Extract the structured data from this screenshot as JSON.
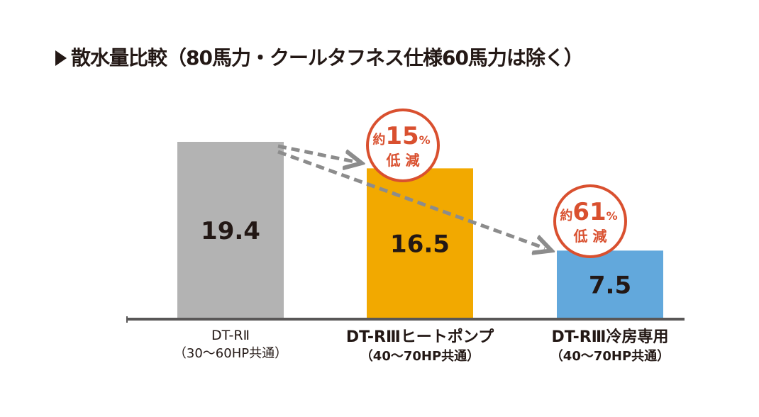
{
  "title": "散水量比較（80馬力・クールタフネス仕様60馬力は除く）",
  "chart_data": {
    "type": "bar",
    "categories": [
      {
        "name": "DT-RⅡ",
        "sub": "（30〜60HP共通）"
      },
      {
        "name": "DT-RⅢヒートポンプ",
        "sub": "（40〜70HP共通）"
      },
      {
        "name": "DT-RⅢ冷房専用",
        "sub": "（40〜70HP共通）"
      }
    ],
    "values": [
      19.4,
      16.5,
      7.5
    ],
    "value_labels": [
      "19.4",
      "16.5",
      "7.5"
    ],
    "colors": [
      "#b3b3b3",
      "#f2a900",
      "#62a8dc"
    ],
    "ylim": [
      0,
      22
    ],
    "annotations": [
      {
        "prefix": "約",
        "number": "15",
        "unit": "%",
        "text": "低 減"
      },
      {
        "prefix": "約",
        "number": "61",
        "unit": "%",
        "text": "低 減"
      }
    ],
    "badge_color": "#d9502f",
    "arrow_color": "#8c8c8c"
  }
}
